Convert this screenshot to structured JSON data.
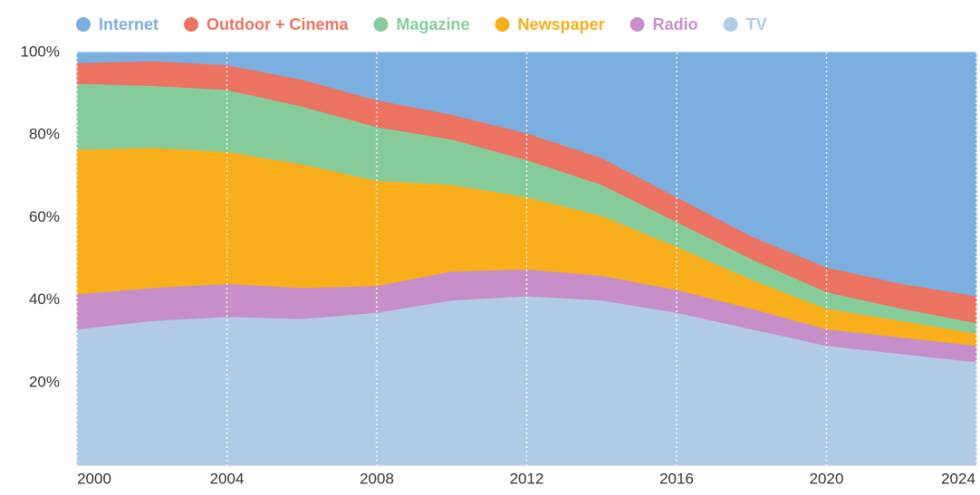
{
  "chart_data": {
    "type": "stacked_area",
    "x": [
      2000,
      2002,
      2004,
      2006,
      2008,
      2010,
      2012,
      2014,
      2016,
      2018,
      2020,
      2022,
      2024
    ],
    "series": [
      {
        "name": "Internet",
        "color": "#7aafdf",
        "values": [
          2.5,
          2,
          3,
          6.5,
          11.5,
          15,
          19.5,
          25.5,
          35,
          44.5,
          52,
          56,
          59
        ]
      },
      {
        "name": "Outdoor + Cinema",
        "color": "#ec7362",
        "values": [
          5,
          6,
          6,
          6.5,
          6.5,
          6,
          6.5,
          6.5,
          6,
          5.5,
          6,
          6,
          6.5
        ]
      },
      {
        "name": "Magazine",
        "color": "#86cc9b",
        "values": [
          16,
          15,
          15,
          14,
          13,
          11,
          9,
          7.5,
          6,
          5,
          4,
          3,
          2.5
        ]
      },
      {
        "name": "Newspaper",
        "color": "#f9ae1c",
        "values": [
          35,
          34,
          32,
          30,
          25.5,
          21,
          17.5,
          14.5,
          10.5,
          7,
          5,
          4,
          3
        ]
      },
      {
        "name": "Radio",
        "color": "#c78fc9",
        "values": [
          8.5,
          8,
          8,
          7.5,
          6.5,
          7,
          6.5,
          6,
          5.5,
          5,
          4,
          4,
          4
        ]
      },
      {
        "name": "TV",
        "color": "#b1cbe6",
        "values": [
          33,
          35,
          36,
          35.5,
          37,
          40,
          41,
          40,
          37,
          33,
          29,
          27,
          25
        ]
      }
    ],
    "xlim": [
      2000,
      2024
    ],
    "xticks": [
      2000,
      2004,
      2008,
      2012,
      2016,
      2020,
      2024
    ],
    "ylim": [
      0,
      100
    ],
    "yticks": [
      {
        "value": 20,
        "label": "20%"
      },
      {
        "value": 40,
        "label": "40%"
      },
      {
        "value": 60,
        "label": "60%"
      },
      {
        "value": 80,
        "label": "80%"
      },
      {
        "value": 100,
        "label": "100%"
      }
    ],
    "grid": true
  }
}
